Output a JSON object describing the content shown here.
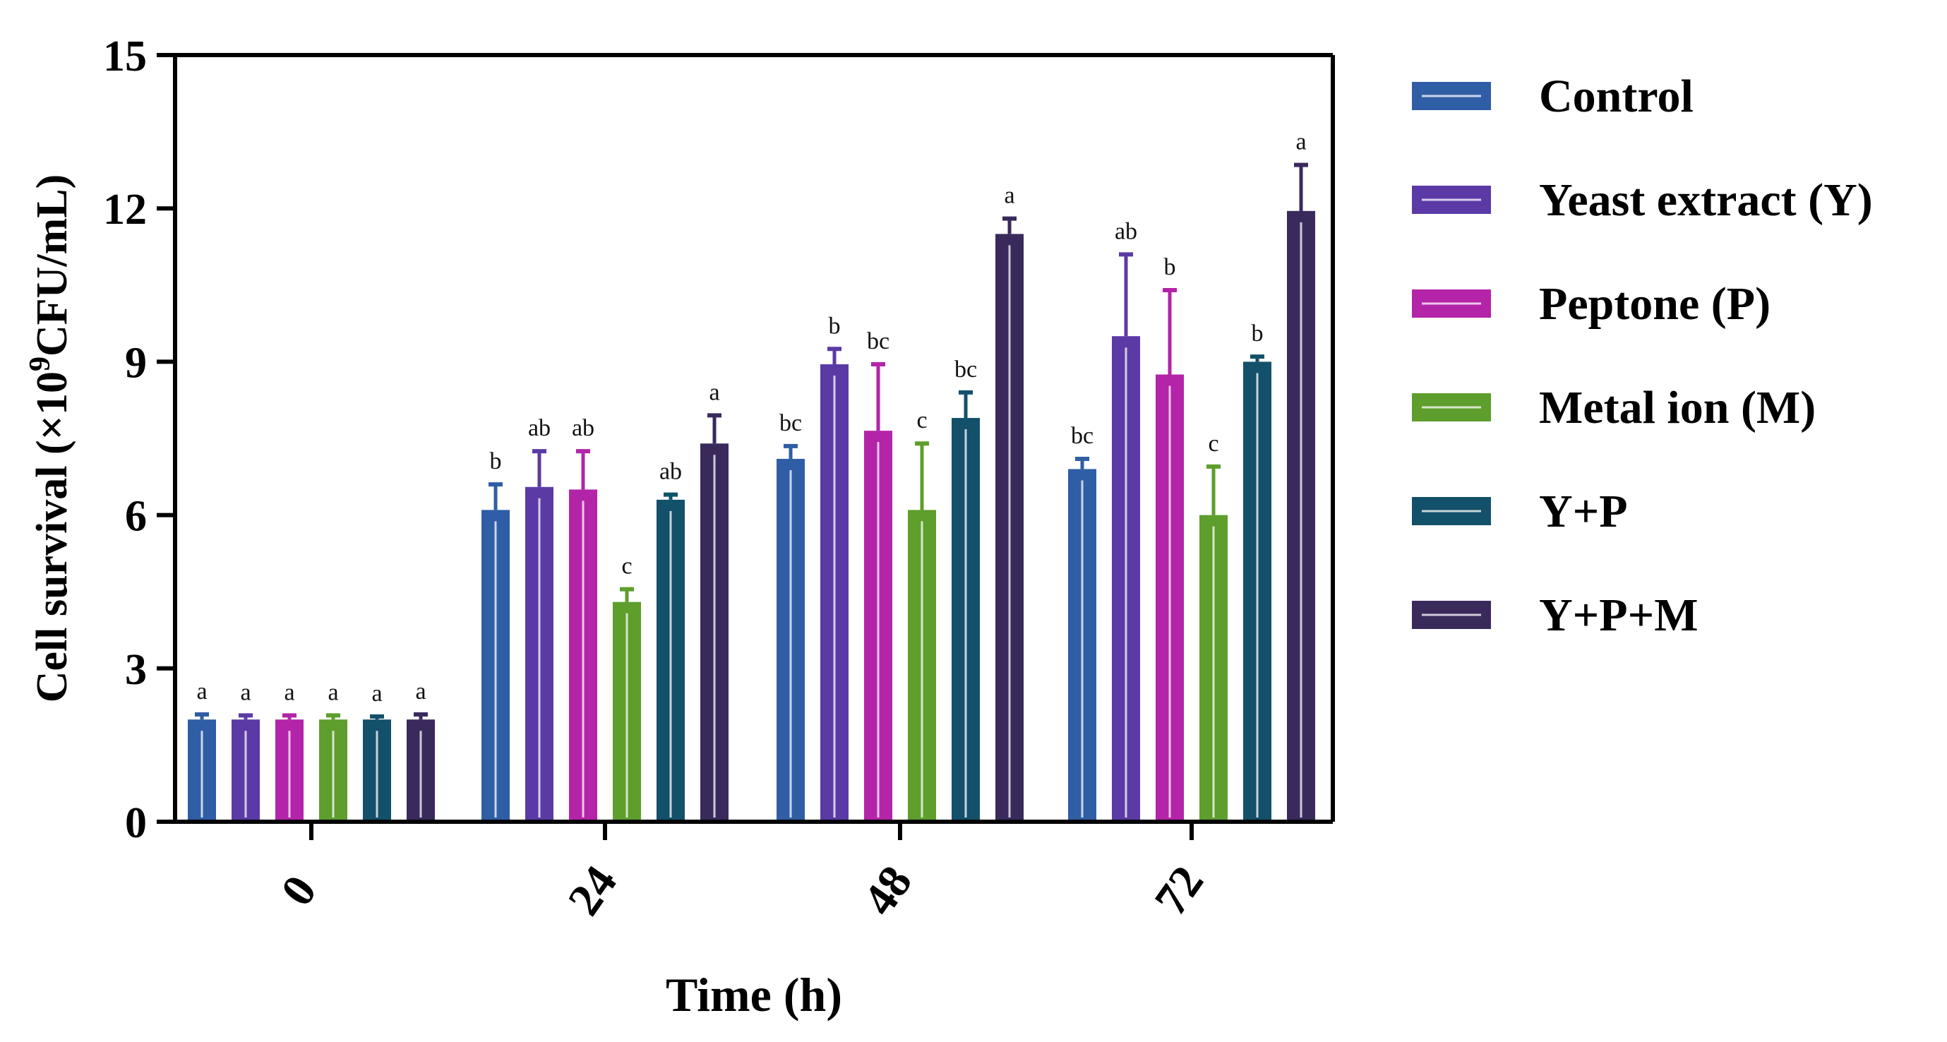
{
  "chart_data": {
    "type": "bar",
    "title": "",
    "xlabel": "Time (h)",
    "ylabel_prefix": "Cell survival (×10",
    "ylabel_exp": "9",
    "ylabel_suffix": "CFU/mL)",
    "ylim": [
      0,
      15
    ],
    "yticks": [
      0,
      3,
      6,
      9,
      12,
      15
    ],
    "categories": [
      "0",
      "24",
      "48",
      "72"
    ],
    "grid": false,
    "legend_position": "right",
    "series": [
      {
        "name": "Control",
        "color": "#2f5ea6",
        "values": [
          2.0,
          6.1,
          7.1,
          6.9
        ],
        "errors": [
          0.1,
          0.5,
          0.25,
          0.2
        ],
        "letters": [
          "a",
          "b",
          "bc",
          "bc"
        ]
      },
      {
        "name": "Yeast extract (Y)",
        "color": "#5b3aa6",
        "values": [
          2.0,
          6.55,
          8.95,
          9.5
        ],
        "errors": [
          0.08,
          0.7,
          0.3,
          1.6
        ],
        "letters": [
          "a",
          "ab",
          "b",
          "ab"
        ]
      },
      {
        "name": "Peptone (P)",
        "color": "#b324a8",
        "values": [
          2.0,
          6.5,
          7.65,
          8.75
        ],
        "errors": [
          0.08,
          0.75,
          1.3,
          1.65
        ],
        "letters": [
          "a",
          "ab",
          "bc",
          "b"
        ]
      },
      {
        "name": "Metal ion (M)",
        "color": "#5e9e2c",
        "values": [
          2.0,
          4.3,
          6.1,
          6.0
        ],
        "errors": [
          0.08,
          0.25,
          1.3,
          0.95
        ],
        "letters": [
          "a",
          "c",
          "c",
          "c"
        ]
      },
      {
        "name": "Y+P",
        "color": "#13506a",
        "values": [
          2.0,
          6.3,
          7.9,
          9.0
        ],
        "errors": [
          0.06,
          0.1,
          0.5,
          0.1
        ],
        "letters": [
          "a",
          "ab",
          "bc",
          "b"
        ]
      },
      {
        "name": "Y+P+M",
        "color": "#3a2a5c",
        "values": [
          2.0,
          7.4,
          11.5,
          11.95
        ],
        "errors": [
          0.1,
          0.55,
          0.3,
          0.9
        ],
        "letters": [
          "a",
          "a",
          "a",
          "a"
        ]
      }
    ]
  }
}
